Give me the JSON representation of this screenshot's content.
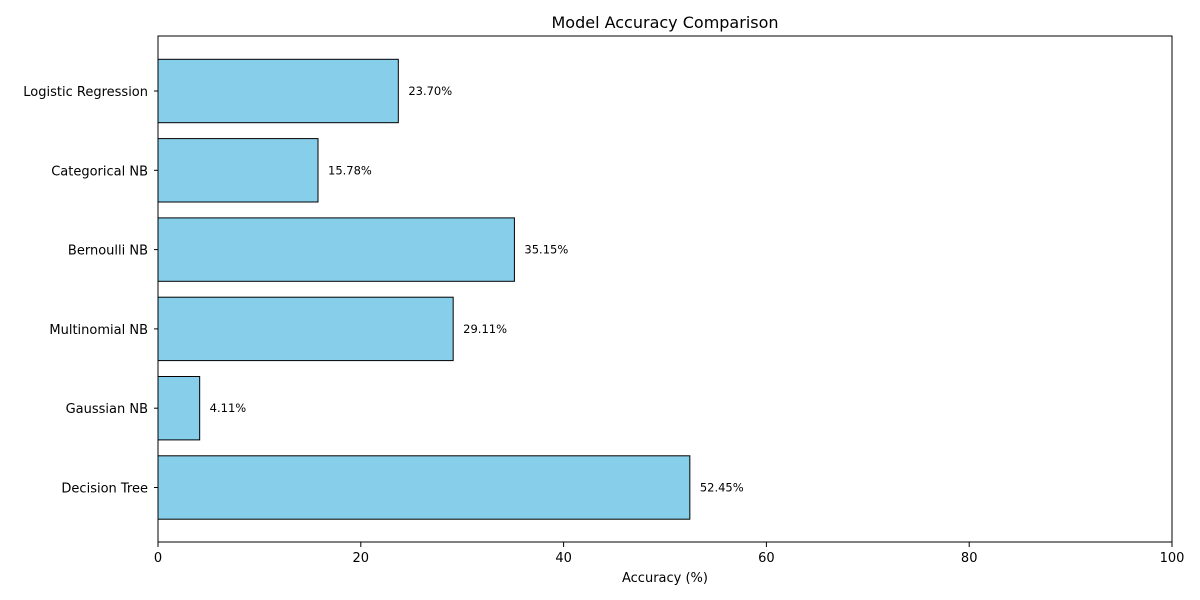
{
  "chart_data": {
    "type": "bar",
    "orientation": "horizontal",
    "title": "Model Accuracy Comparison",
    "xlabel": "Accuracy (%)",
    "ylabel": "",
    "xlim": [
      0,
      100
    ],
    "xticks": [
      0,
      20,
      40,
      60,
      80,
      100
    ],
    "categories": [
      "Decision Tree",
      "Gaussian NB",
      "Multinomial NB",
      "Bernoulli NB",
      "Categorical NB",
      "Logistic Regression"
    ],
    "values": [
      52.45,
      4.11,
      29.11,
      35.15,
      15.78,
      23.7
    ],
    "data_labels": [
      "52.45%",
      "4.11%",
      "29.11%",
      "35.15%",
      "15.78%",
      "23.70%"
    ],
    "grid": false,
    "bar_color": "#87CEEB",
    "bar_edge_color": "#000000"
  }
}
